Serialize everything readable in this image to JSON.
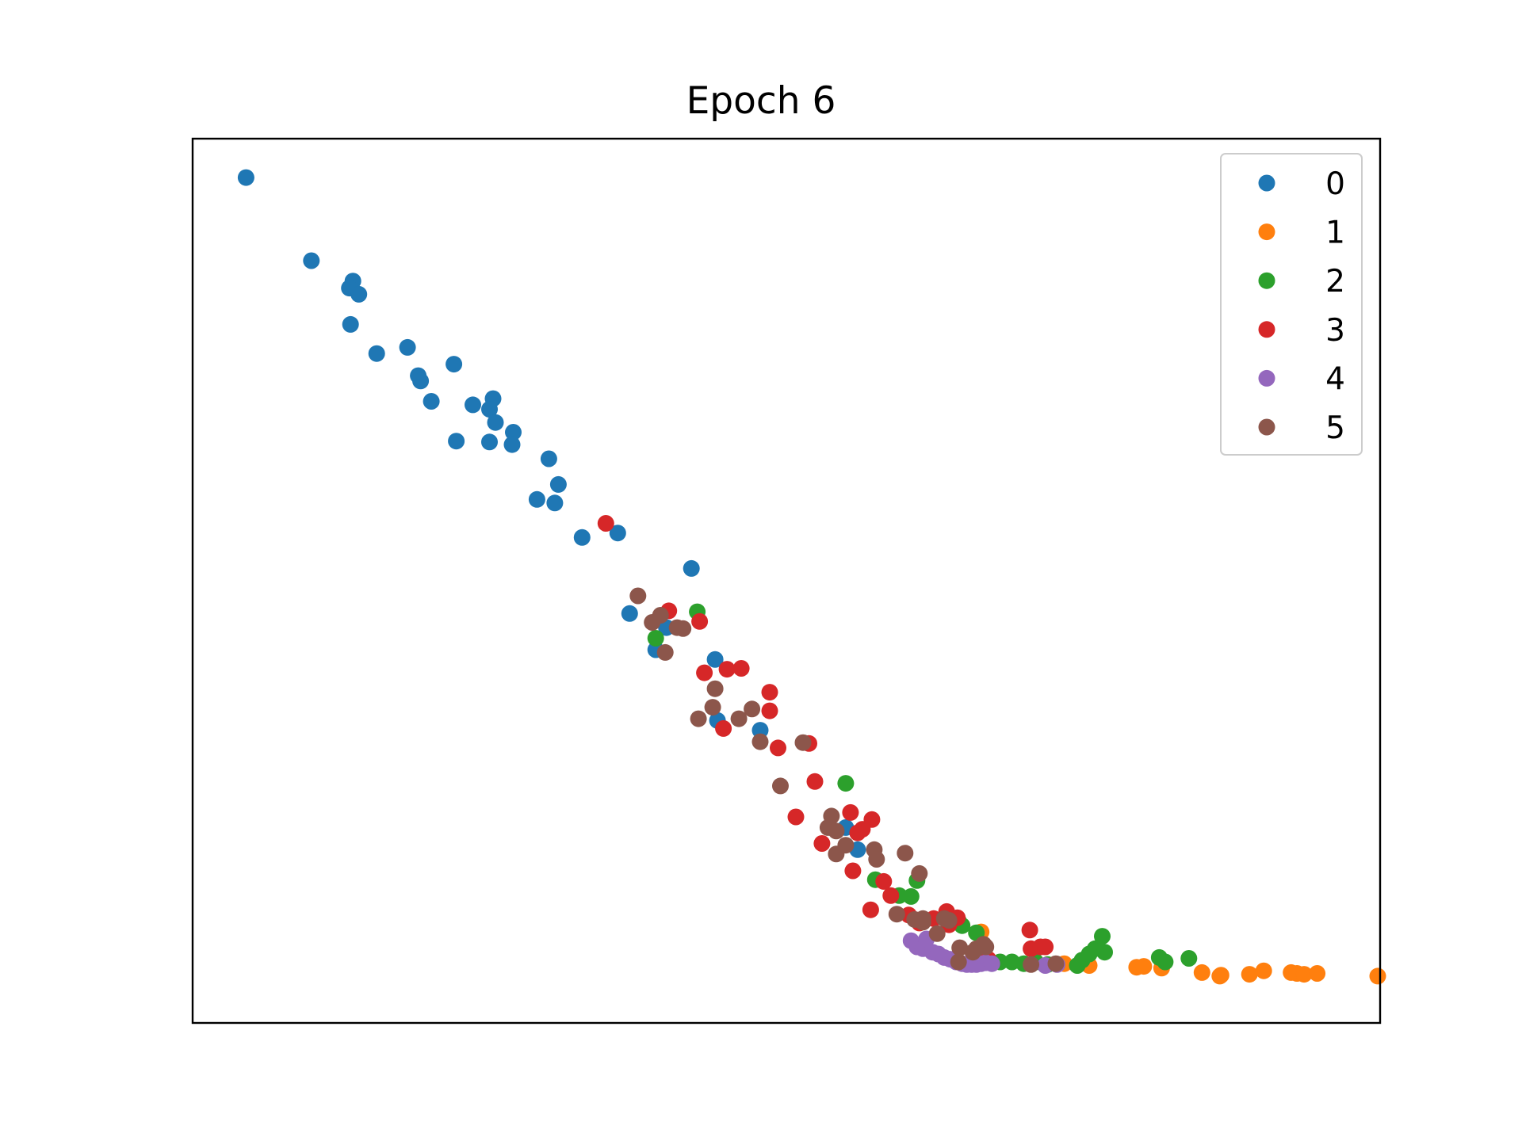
{
  "chart_data": {
    "type": "scatter",
    "title": "Epoch 6",
    "xlabel": "",
    "ylabel": "",
    "xlim": [
      0,
      100
    ],
    "ylim": [
      0,
      100
    ],
    "axis_ticks_visible": false,
    "grid": false,
    "legend_position": "top-right",
    "series": [
      {
        "name": "0",
        "color": "#1f77b4",
        "points": [
          [
            4.5,
            95.6
          ],
          [
            10.0,
            86.2
          ],
          [
            13.5,
            83.9
          ],
          [
            13.2,
            83.1
          ],
          [
            14.0,
            82.4
          ],
          [
            13.3,
            79.0
          ],
          [
            15.5,
            75.7
          ],
          [
            18.1,
            76.4
          ],
          [
            22.0,
            74.5
          ],
          [
            19.0,
            73.2
          ],
          [
            19.2,
            72.6
          ],
          [
            20.1,
            70.3
          ],
          [
            23.6,
            69.9
          ],
          [
            25.3,
            70.6
          ],
          [
            25.0,
            69.4
          ],
          [
            25.5,
            67.9
          ],
          [
            27.0,
            66.8
          ],
          [
            22.2,
            65.8
          ],
          [
            25.0,
            65.7
          ],
          [
            26.9,
            65.4
          ],
          [
            30.0,
            63.8
          ],
          [
            30.8,
            60.9
          ],
          [
            29.0,
            59.2
          ],
          [
            30.5,
            58.8
          ],
          [
            32.8,
            54.9
          ],
          [
            35.8,
            55.4
          ],
          [
            42.0,
            51.4
          ],
          [
            36.8,
            46.3
          ],
          [
            39.9,
            44.7
          ],
          [
            39.0,
            42.2
          ],
          [
            44.0,
            41.1
          ],
          [
            44.2,
            34.2
          ],
          [
            47.8,
            33.1
          ],
          [
            55.0,
            22.1
          ],
          [
            56.0,
            19.6
          ]
        ]
      },
      {
        "name": "1",
        "color": "#ff7f0e",
        "points": [
          [
            66.4,
            10.3
          ],
          [
            73.4,
            6.7
          ],
          [
            75.5,
            6.5
          ],
          [
            79.5,
            6.3
          ],
          [
            80.1,
            6.4
          ],
          [
            81.6,
            6.2
          ],
          [
            85.0,
            5.7
          ],
          [
            86.5,
            5.3
          ],
          [
            86.6,
            5.4
          ],
          [
            89.0,
            5.5
          ],
          [
            90.2,
            5.9
          ],
          [
            92.5,
            5.7
          ],
          [
            93.0,
            5.6
          ],
          [
            93.6,
            5.5
          ],
          [
            94.7,
            5.6
          ],
          [
            99.8,
            5.3
          ]
        ]
      },
      {
        "name": "2",
        "color": "#2ca02c",
        "points": [
          [
            39.0,
            43.5
          ],
          [
            42.5,
            46.5
          ],
          [
            55.0,
            27.1
          ],
          [
            57.5,
            16.2
          ],
          [
            59.5,
            14.4
          ],
          [
            60.5,
            14.3
          ],
          [
            61.0,
            16.1
          ],
          [
            64.5,
            11.5
          ],
          [
            66.0,
            10.2
          ],
          [
            64.8,
            11.0
          ],
          [
            68.0,
            6.9
          ],
          [
            69.0,
            6.9
          ],
          [
            70.0,
            6.7
          ],
          [
            71.0,
            6.9
          ],
          [
            72.0,
            6.6
          ],
          [
            74.5,
            6.5
          ],
          [
            74.9,
            7.1
          ],
          [
            75.5,
            7.8
          ],
          [
            76.0,
            8.4
          ],
          [
            76.6,
            9.8
          ],
          [
            76.8,
            8.0
          ],
          [
            81.4,
            7.4
          ],
          [
            81.9,
            6.9
          ],
          [
            83.9,
            7.3
          ]
        ]
      },
      {
        "name": "3",
        "color": "#d62728",
        "points": [
          [
            34.8,
            56.5
          ],
          [
            40.1,
            46.6
          ],
          [
            42.7,
            45.4
          ],
          [
            43.1,
            39.6
          ],
          [
            45.0,
            40.0
          ],
          [
            46.2,
            40.1
          ],
          [
            48.6,
            37.4
          ],
          [
            48.6,
            35.3
          ],
          [
            44.7,
            33.3
          ],
          [
            49.3,
            31.1
          ],
          [
            51.9,
            31.6
          ],
          [
            52.4,
            27.3
          ],
          [
            50.8,
            23.3
          ],
          [
            53.0,
            20.3
          ],
          [
            55.4,
            23.8
          ],
          [
            56.4,
            21.9
          ],
          [
            57.2,
            23.0
          ],
          [
            56.0,
            21.5
          ],
          [
            55.6,
            17.2
          ],
          [
            58.8,
            14.4
          ],
          [
            57.1,
            12.8
          ],
          [
            60.3,
            12.2
          ],
          [
            61.2,
            11.3
          ],
          [
            63.5,
            12.6
          ],
          [
            64.4,
            11.9
          ],
          [
            62.4,
            11.8
          ],
          [
            58.2,
            16.0
          ],
          [
            63.7,
            11.1
          ],
          [
            67.0,
            7.2
          ],
          [
            70.5,
            10.5
          ],
          [
            70.6,
            8.4
          ],
          [
            71.4,
            8.6
          ],
          [
            71.8,
            8.6
          ]
        ]
      },
      {
        "name": "4",
        "color": "#9467bd",
        "points": [
          [
            60.5,
            9.3
          ],
          [
            61.0,
            8.6
          ],
          [
            61.5,
            8.4
          ],
          [
            61.8,
            9.5
          ],
          [
            62.3,
            8.0
          ],
          [
            62.8,
            7.8
          ],
          [
            63.3,
            7.4
          ],
          [
            63.8,
            7.2
          ],
          [
            64.3,
            6.9
          ],
          [
            64.8,
            6.7
          ],
          [
            65.2,
            6.6
          ],
          [
            65.6,
            6.6
          ],
          [
            66.0,
            6.6
          ],
          [
            66.4,
            6.7
          ],
          [
            66.8,
            6.8
          ],
          [
            67.3,
            6.7
          ],
          [
            71.8,
            6.5
          ],
          [
            72.8,
            6.6
          ]
        ]
      },
      {
        "name": "5",
        "color": "#8c564b",
        "points": [
          [
            37.5,
            48.3
          ],
          [
            38.7,
            45.3
          ],
          [
            39.4,
            46.1
          ],
          [
            40.8,
            44.7
          ],
          [
            41.3,
            44.6
          ],
          [
            39.8,
            41.9
          ],
          [
            44.0,
            37.8
          ],
          [
            43.8,
            35.7
          ],
          [
            42.6,
            34.4
          ],
          [
            46.0,
            34.4
          ],
          [
            47.1,
            35.5
          ],
          [
            47.8,
            31.8
          ],
          [
            49.5,
            26.8
          ],
          [
            51.4,
            31.7
          ],
          [
            53.8,
            23.4
          ],
          [
            53.5,
            22.1
          ],
          [
            54.2,
            21.7
          ],
          [
            55.0,
            20.1
          ],
          [
            54.2,
            19.1
          ],
          [
            57.4,
            19.6
          ],
          [
            57.6,
            18.5
          ],
          [
            60.0,
            19.2
          ],
          [
            61.2,
            16.9
          ],
          [
            60.8,
            11.7
          ],
          [
            59.3,
            12.3
          ],
          [
            61.5,
            11.4
          ],
          [
            62.7,
            10.1
          ],
          [
            63.3,
            11.8
          ],
          [
            63.7,
            11.6
          ],
          [
            64.6,
            8.5
          ],
          [
            66.0,
            8.4
          ],
          [
            66.6,
            8.9
          ],
          [
            64.5,
            6.9
          ],
          [
            70.6,
            6.6
          ],
          [
            72.7,
            6.7
          ],
          [
            65.7,
            8.0
          ],
          [
            66.8,
            8.6
          ],
          [
            61.5,
            11.8
          ]
        ]
      }
    ]
  }
}
